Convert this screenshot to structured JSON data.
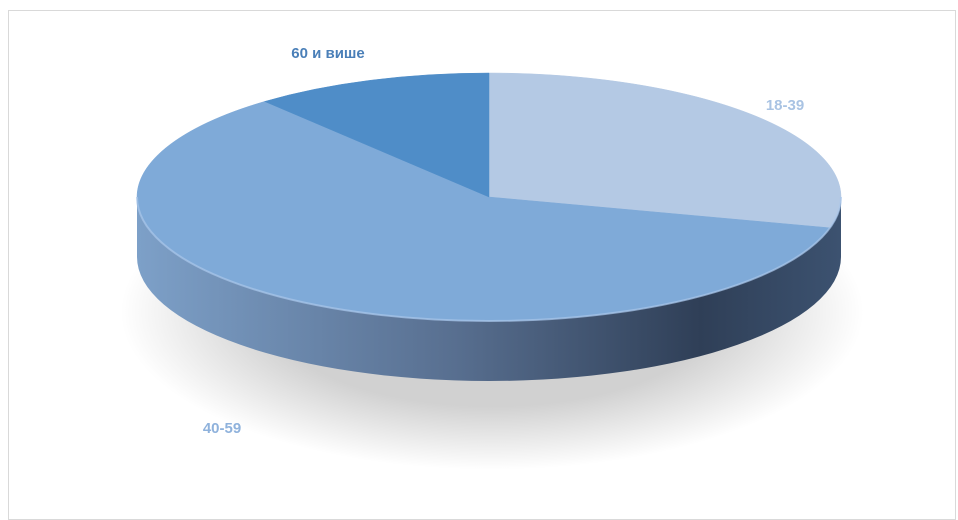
{
  "chart_data": {
    "type": "pie",
    "style": "3d",
    "title": "",
    "categories": [
      "18-39",
      "40-59",
      "60 и више"
    ],
    "values": [
      29,
      60,
      11
    ],
    "colors": [
      "#b4c9e4",
      "#7faad8",
      "#4f8dc8"
    ],
    "side_color_dark": "#2f3f57",
    "side_color_light": "#7da0c8",
    "label_colors": [
      "#a9c3e3",
      "#8fb2dc",
      "#4a7fb8"
    ],
    "legend": "none"
  }
}
